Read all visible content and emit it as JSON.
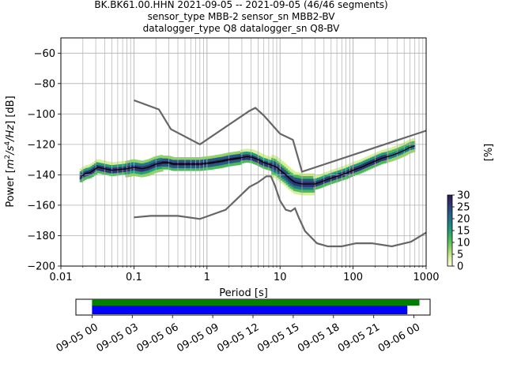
{
  "header": {
    "line1": "BK.BK61.00.HHN   2021-09-05 -- 2021-09-05  (46/46 segments)",
    "line2": "sensor_type MBB-2 sensor_sn MBB2-BV",
    "line3": "datalogger_type Q8 datalogger_sn Q8-BV"
  },
  "chart_data": [
    {
      "type": "heatmap",
      "xlabel": "Period [s]",
      "ylabel_parts": [
        "Power [",
        "m",
        "2",
        "/",
        "s",
        "4",
        "/Hz",
        "] [dB]"
      ],
      "xscale": "log",
      "xlim": [
        0.01,
        1000
      ],
      "ylim": [
        -200,
        -50
      ],
      "grid": true,
      "x_ticks": [
        0.01,
        0.1,
        1,
        10,
        100,
        1000
      ],
      "x_tick_labels": [
        "0.01",
        "0.1",
        "1",
        "10",
        "100",
        "1000"
      ],
      "y_ticks": [
        -200,
        -180,
        -160,
        -140,
        -120,
        -100,
        -80,
        -60
      ],
      "y_tick_labels": [
        "−200",
        "−180",
        "−160",
        "−140",
        "−120",
        "−100",
        "−80",
        "−60"
      ],
      "colorbar": {
        "label": "[%]",
        "range": [
          0,
          30
        ],
        "ticks": [
          0,
          5,
          10,
          15,
          20,
          25,
          30
        ],
        "tick_labels": [
          "0",
          "5",
          "10",
          "15",
          "20",
          "25",
          "30"
        ],
        "colors": [
          "#ffffe0",
          "#d6ef9b",
          "#93d26a",
          "#4cb85c",
          "#249c76",
          "#1d7b86",
          "#255a82",
          "#2e3574",
          "#2d1b4e"
        ]
      },
      "noise_model_high": [
        [
          0.1,
          -91
        ],
        [
          0.22,
          -97
        ],
        [
          0.32,
          -110
        ],
        [
          0.8,
          -120
        ],
        [
          3.8,
          -98
        ],
        [
          4.6,
          -96
        ],
        [
          6,
          -101
        ],
        [
          10,
          -113
        ],
        [
          15,
          -117
        ],
        [
          20,
          -138
        ],
        [
          1000,
          -111
        ]
      ],
      "noise_model_low": [
        [
          0.1,
          -168
        ],
        [
          0.17,
          -167
        ],
        [
          0.4,
          -167
        ],
        [
          0.8,
          -169
        ],
        [
          1.2,
          -166
        ],
        [
          1.8,
          -163
        ],
        [
          3.8,
          -148
        ],
        [
          5,
          -145
        ],
        [
          6.5,
          -141
        ],
        [
          7.5,
          -141
        ],
        [
          8.5,
          -147
        ],
        [
          10,
          -157
        ],
        [
          12,
          -163
        ],
        [
          14,
          -164
        ],
        [
          16,
          -162
        ],
        [
          18,
          -168
        ],
        [
          22,
          -177
        ],
        [
          32,
          -185
        ],
        [
          45,
          -187
        ],
        [
          70,
          -187
        ],
        [
          110,
          -185
        ],
        [
          180,
          -185
        ],
        [
          340,
          -187
        ],
        [
          620,
          -184
        ],
        [
          1000,
          -178
        ]
      ],
      "median_curve": [
        [
          0.019,
          -141
        ],
        [
          0.022,
          -139
        ],
        [
          0.025,
          -138.5
        ],
        [
          0.028,
          -137
        ],
        [
          0.032,
          -135
        ],
        [
          0.04,
          -136
        ],
        [
          0.05,
          -137
        ],
        [
          0.08,
          -136
        ],
        [
          0.1,
          -135
        ],
        [
          0.13,
          -136
        ],
        [
          0.16,
          -135
        ],
        [
          0.2,
          -133
        ],
        [
          0.25,
          -132
        ],
        [
          0.3,
          -132
        ],
        [
          0.35,
          -133
        ],
        [
          0.45,
          -133
        ],
        [
          0.6,
          -133
        ],
        [
          0.8,
          -133
        ],
        [
          1.2,
          -132
        ],
        [
          1.6,
          -131
        ],
        [
          2.0,
          -130
        ],
        [
          2.8,
          -129
        ],
        [
          3.5,
          -128
        ],
        [
          4.2,
          -128.5
        ],
        [
          5,
          -130
        ],
        [
          6,
          -132
        ],
        [
          7,
          -133
        ],
        [
          8,
          -134
        ],
        [
          9,
          -135
        ],
        [
          10,
          -137
        ],
        [
          12,
          -140
        ],
        [
          14,
          -143
        ],
        [
          16,
          -145
        ],
        [
          20,
          -146
        ],
        [
          25,
          -146
        ],
        [
          30,
          -146
        ],
        [
          35,
          -145
        ],
        [
          45,
          -143
        ],
        [
          60,
          -141
        ],
        [
          80,
          -139
        ],
        [
          100,
          -137
        ],
        [
          130,
          -135
        ],
        [
          160,
          -133
        ],
        [
          200,
          -131
        ],
        [
          250,
          -129
        ],
        [
          300,
          -128
        ],
        [
          350,
          -127
        ],
        [
          400,
          -126
        ],
        [
          500,
          -124
        ],
        [
          600,
          -122
        ],
        [
          700,
          -121
        ]
      ]
    },
    {
      "type": "bar",
      "x_tick_labels": [
        "09-05 00",
        "09-05 03",
        "09-05 06",
        "09-05 09",
        "09-05 12",
        "09-05 15",
        "09-05 18",
        "09-05 21",
        "09-06 00"
      ],
      "x_ticks_hours": [
        0,
        3,
        6,
        9,
        12,
        15,
        18,
        21,
        24
      ],
      "xlim_hours": [
        -1.2,
        25.2
      ],
      "bars": [
        {
          "color": "#008000",
          "start_hours": 0,
          "end_hours": 24.4
        },
        {
          "color": "#0000ff",
          "start_hours": 0,
          "end_hours": 23.5
        }
      ]
    }
  ]
}
